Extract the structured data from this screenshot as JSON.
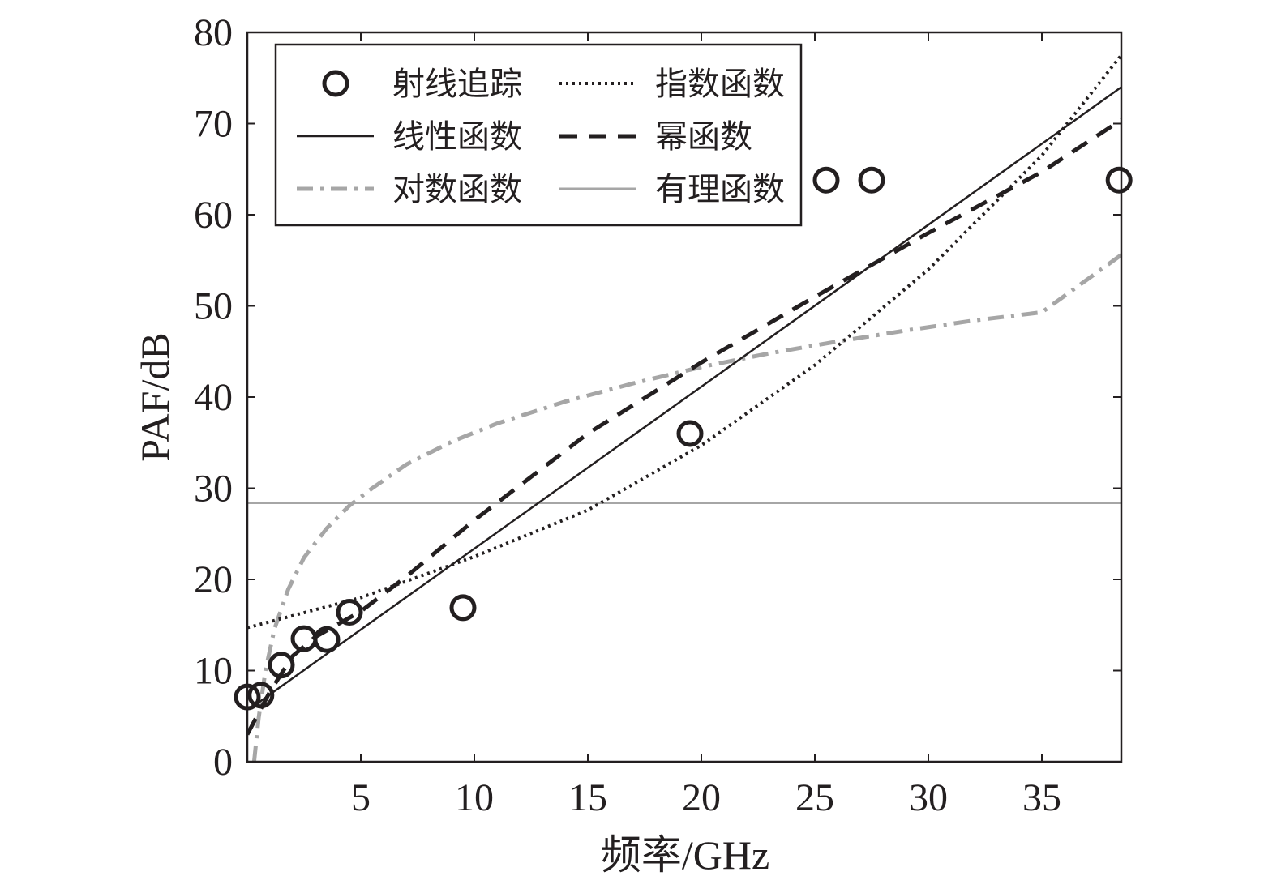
{
  "chart_data": {
    "type": "scatter",
    "xlabel": "频率/GHz",
    "ylabel": "PAF/dB",
    "xlim": [
      0,
      38.5
    ],
    "ylim": [
      0,
      80
    ],
    "xticks": [
      5,
      10,
      15,
      20,
      25,
      30,
      35
    ],
    "yticks": [
      0,
      10,
      20,
      30,
      40,
      50,
      60,
      70,
      80
    ],
    "grid": false,
    "legend_position": "top-left",
    "series": [
      {
        "name": "射线追踪",
        "kind": "scatter",
        "color": "#231f20",
        "x": [
          0,
          0.6,
          1.5,
          2.5,
          3.5,
          4.5,
          9.5,
          19.5,
          25.5,
          27.5,
          38.4
        ],
        "y": [
          7.1,
          7.3,
          10.6,
          13.5,
          13.4,
          16.4,
          16.9,
          36.0,
          63.8,
          63.8,
          63.8
        ]
      },
      {
        "name": "线性函数",
        "kind": "line",
        "color": "#231f20",
        "dash": "solid",
        "x": [
          0.5,
          38.5
        ],
        "y": [
          6.5,
          74.0
        ]
      },
      {
        "name": "对数函数",
        "kind": "line",
        "color": "#a6a6a6",
        "dash": "dashdot",
        "x": [
          0.3,
          0.5,
          0.8,
          1.2,
          1.8,
          2.5,
          3.5,
          4.5,
          5.5,
          7,
          9,
          11,
          14,
          17,
          20,
          23,
          26,
          29,
          32,
          35,
          38.5
        ],
        "y": [
          0,
          4.8,
          10,
          14.6,
          18.9,
          22.4,
          25.6,
          28.1,
          30.0,
          32.6,
          35.1,
          37.1,
          39.5,
          41.5,
          43.3,
          44.8,
          46.1,
          47.3,
          48.4,
          49.3,
          55.6
        ]
      },
      {
        "name": "指数函数",
        "kind": "line",
        "color": "#231f20",
        "dash": "dotted",
        "x": [
          0,
          5,
          10,
          15,
          20,
          25,
          30,
          35,
          38.5
        ],
        "y": [
          14.7,
          18.0,
          22.5,
          27.6,
          34.7,
          43.5,
          54.0,
          66.5,
          77.5
        ]
      },
      {
        "name": "幂函数",
        "kind": "line",
        "color": "#231f20",
        "dash": "dashed",
        "x": [
          0,
          1,
          2,
          3,
          5,
          7,
          10,
          15,
          20,
          25,
          30,
          35,
          38.5
        ],
        "y": [
          3.0,
          7.7,
          11.6,
          13.7,
          16.5,
          20.3,
          26.5,
          36.0,
          43.8,
          51.0,
          58.0,
          64.7,
          70.4
        ]
      },
      {
        "name": "有理函数",
        "kind": "line",
        "color": "#a6a6a6",
        "dash": "solid",
        "x": [
          0,
          38.5
        ],
        "y": [
          28.4,
          28.4
        ]
      }
    ]
  }
}
